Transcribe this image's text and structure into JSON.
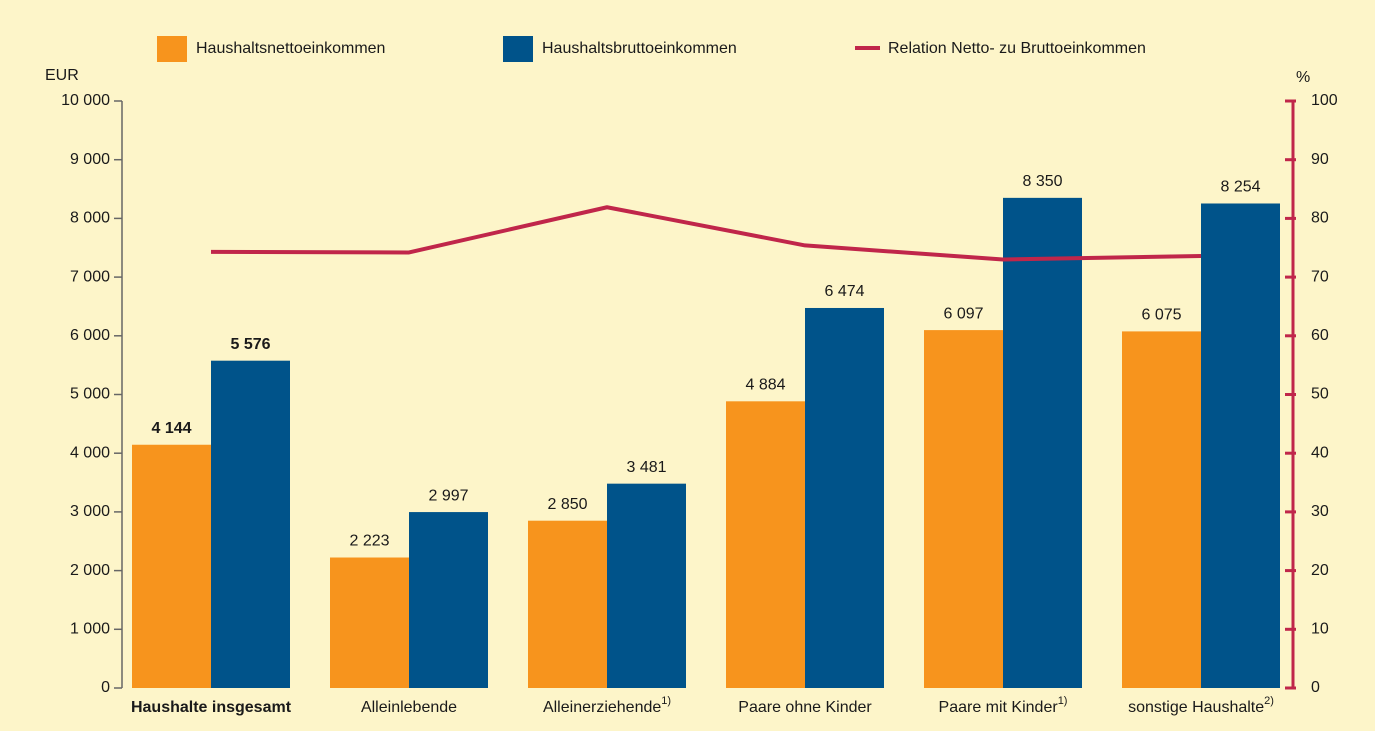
{
  "chart_data": {
    "type": "bar_line",
    "categories": [
      "Haushalte insgesamt",
      "Alleinlebende",
      "Alleinerziehende",
      "Paare ohne Kinder",
      "Paare mit Kinder",
      "sonstige Haushalte"
    ],
    "footnotes": [
      null,
      null,
      "1)",
      null,
      "1)",
      "2)"
    ],
    "bold_category": 0,
    "y_label": "EUR",
    "y2_label": "%",
    "series": [
      {
        "name": "Haushaltsnettoeinkommen",
        "color": "#f7941d",
        "values": [
          4144,
          2223,
          2850,
          4884,
          6097,
          6075
        ],
        "value_labels": [
          "4 144",
          "2 223",
          "2 850",
          "4 884",
          "6 097",
          "6 075"
        ]
      },
      {
        "name": "Haushaltsbruttoeinkommen",
        "color": "#00538a",
        "values": [
          5576,
          2997,
          3481,
          6474,
          8350,
          8254
        ],
        "value_labels": [
          "5 576",
          "2 997",
          "3 481",
          "6 474",
          "8 350",
          "8 254"
        ]
      },
      {
        "name": "Relation Netto- zu Bruttoeinkommen",
        "color": "#c0264a",
        "axis": "y2",
        "type": "line",
        "values": [
          74.3,
          74.2,
          81.9,
          75.4,
          73.0,
          73.6
        ]
      }
    ],
    "ylim": [
      0,
      10000
    ],
    "yticks": [
      0,
      {
        "value": 1000,
        "label": "1 000"
      },
      {
        "value": 2000,
        "label": "2 000"
      },
      {
        "value": 3000,
        "label": "3 000"
      },
      {
        "value": 4000,
        "label": "4 000"
      },
      {
        "value": 5000,
        "label": "5 000"
      },
      {
        "value": 6000,
        "label": "6 000"
      },
      {
        "value": 7000,
        "label": "7 000"
      },
      {
        "value": 8000,
        "label": "8 000"
      },
      {
        "value": 9000,
        "label": "9 000"
      },
      {
        "value": 10000,
        "label": "10 000"
      }
    ],
    "y2lim": [
      0,
      100
    ],
    "y2ticks": [
      0,
      10,
      20,
      30,
      40,
      50,
      60,
      70,
      80,
      90,
      100
    ]
  }
}
